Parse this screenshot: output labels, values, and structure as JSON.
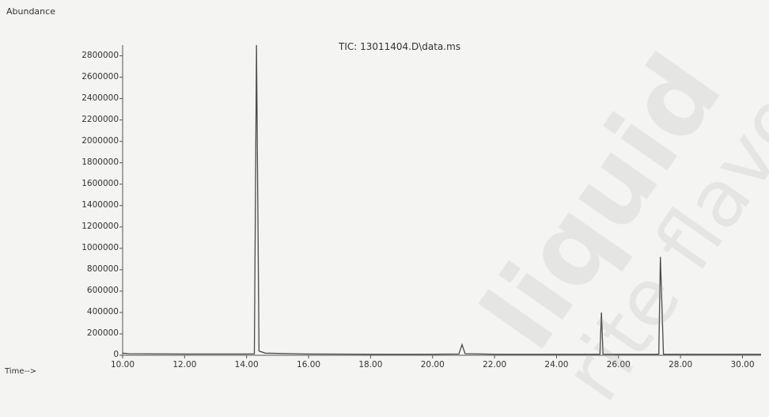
{
  "chart_data": {
    "type": "line",
    "title": "TIC: 13011404.D\\data.ms",
    "ylabel": "Abundance",
    "xlabel": "Time-->",
    "xlim": [
      10.0,
      30.6
    ],
    "ylim": [
      0,
      2900000
    ],
    "x_ticks": [
      "10.00",
      "12.00",
      "14.00",
      "16.00",
      "18.00",
      "20.00",
      "22.00",
      "24.00",
      "26.00",
      "28.00",
      "30.00"
    ],
    "y_ticks": [
      "0",
      "200000",
      "400000",
      "600000",
      "800000",
      "1000000",
      "1200000",
      "1400000",
      "1600000",
      "1800000",
      "2000000",
      "2200000",
      "2400000",
      "2600000",
      "2800000"
    ],
    "series": [
      {
        "values": [
          {
            "x": 10.0,
            "y": 20000
          },
          {
            "x": 10.2,
            "y": 15000
          },
          {
            "x": 12.0,
            "y": 12000
          },
          {
            "x": 14.0,
            "y": 12000
          },
          {
            "x": 14.25,
            "y": 14000
          },
          {
            "x": 14.32,
            "y": 2900000
          },
          {
            "x": 14.4,
            "y": 40000
          },
          {
            "x": 14.6,
            "y": 20000
          },
          {
            "x": 16.0,
            "y": 12000
          },
          {
            "x": 18.0,
            "y": 10000
          },
          {
            "x": 20.0,
            "y": 10000
          },
          {
            "x": 20.85,
            "y": 12000
          },
          {
            "x": 20.95,
            "y": 100000
          },
          {
            "x": 21.05,
            "y": 15000
          },
          {
            "x": 22.0,
            "y": 10000
          },
          {
            "x": 24.0,
            "y": 10000
          },
          {
            "x": 25.4,
            "y": 10000
          },
          {
            "x": 25.45,
            "y": 400000
          },
          {
            "x": 25.5,
            "y": 10000
          },
          {
            "x": 26.0,
            "y": 10000
          },
          {
            "x": 27.3,
            "y": 10000
          },
          {
            "x": 27.35,
            "y": 920000
          },
          {
            "x": 27.45,
            "y": 10000
          },
          {
            "x": 28.0,
            "y": 10000
          },
          {
            "x": 30.0,
            "y": 10000
          },
          {
            "x": 30.6,
            "y": 10000
          }
        ]
      }
    ],
    "grid": false,
    "colors": {
      "line": "#4a4a4a",
      "text": "#333333",
      "background": "#f4f4f2"
    }
  },
  "watermark": {
    "line1": "liquid",
    "line2": "rite flavo"
  }
}
